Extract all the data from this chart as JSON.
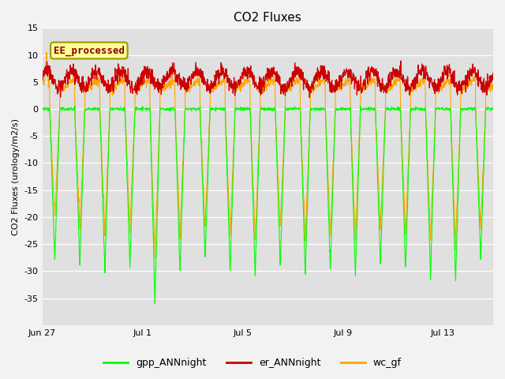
{
  "title": "CO2 Fluxes",
  "ylabel": "CO2 Fluxes (urology/m2/s)",
  "ylim": [
    -40,
    15
  ],
  "yticks": [
    -35,
    -30,
    -25,
    -20,
    -15,
    -10,
    -5,
    0,
    5,
    10,
    15
  ],
  "xtick_labels": [
    "Jun 27",
    "Jul 1",
    "Jul 5",
    "Jul 9",
    "Jul 13"
  ],
  "xtick_positions": [
    0,
    4,
    8,
    12,
    16
  ],
  "annotation_text": "EE_processed",
  "annotation_color": "#8B0000",
  "annotation_bg": "#FFFF99",
  "annotation_border": "#999900",
  "gpp_color": "#00FF00",
  "er_color": "#CC0000",
  "wc_color": "#FFA500",
  "legend_labels": [
    "gpp_ANNnight",
    "er_ANNnight",
    "wc_gf"
  ],
  "plot_bg": "#E0E0E0",
  "fig_bg": "#F2F2F2",
  "n_days": 18,
  "pts_per_day": 96,
  "title_fontsize": 11,
  "label_fontsize": 8,
  "tick_fontsize": 8,
  "legend_fontsize": 9
}
